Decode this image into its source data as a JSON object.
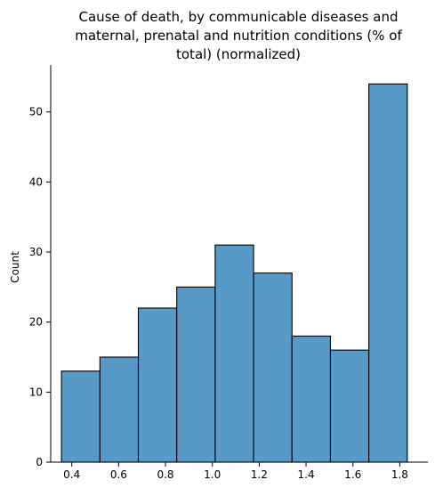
{
  "chart_data": {
    "type": "histogram",
    "title_lines": [
      "Cause of death, by communicable diseases and",
      "maternal, prenatal and nutrition conditions (% of",
      "total) (normalized)"
    ],
    "xlabel": "",
    "ylabel": "Count",
    "xlim": [
      0.31,
      1.92
    ],
    "ylim": [
      0,
      56.7
    ],
    "x_ticks": [
      0.4,
      0.6,
      0.8,
      1.0,
      1.2,
      1.4,
      1.6,
      1.8
    ],
    "x_tick_labels": [
      "0.4",
      "0.6",
      "0.8",
      "1.0",
      "1.2",
      "1.4",
      "1.6",
      "1.8"
    ],
    "y_ticks": [
      0,
      10,
      20,
      30,
      40,
      50
    ],
    "y_tick_labels": [
      "0",
      "10",
      "20",
      "30",
      "40",
      "50"
    ],
    "bin_edges": [
      0.356,
      0.52,
      0.684,
      0.848,
      1.012,
      1.176,
      1.34,
      1.504,
      1.668,
      1.832
    ],
    "counts": [
      13,
      15,
      22,
      25,
      31,
      27,
      18,
      16,
      54
    ],
    "grid": false,
    "bar_color": "#5799c7",
    "edge_color": "#000000"
  }
}
